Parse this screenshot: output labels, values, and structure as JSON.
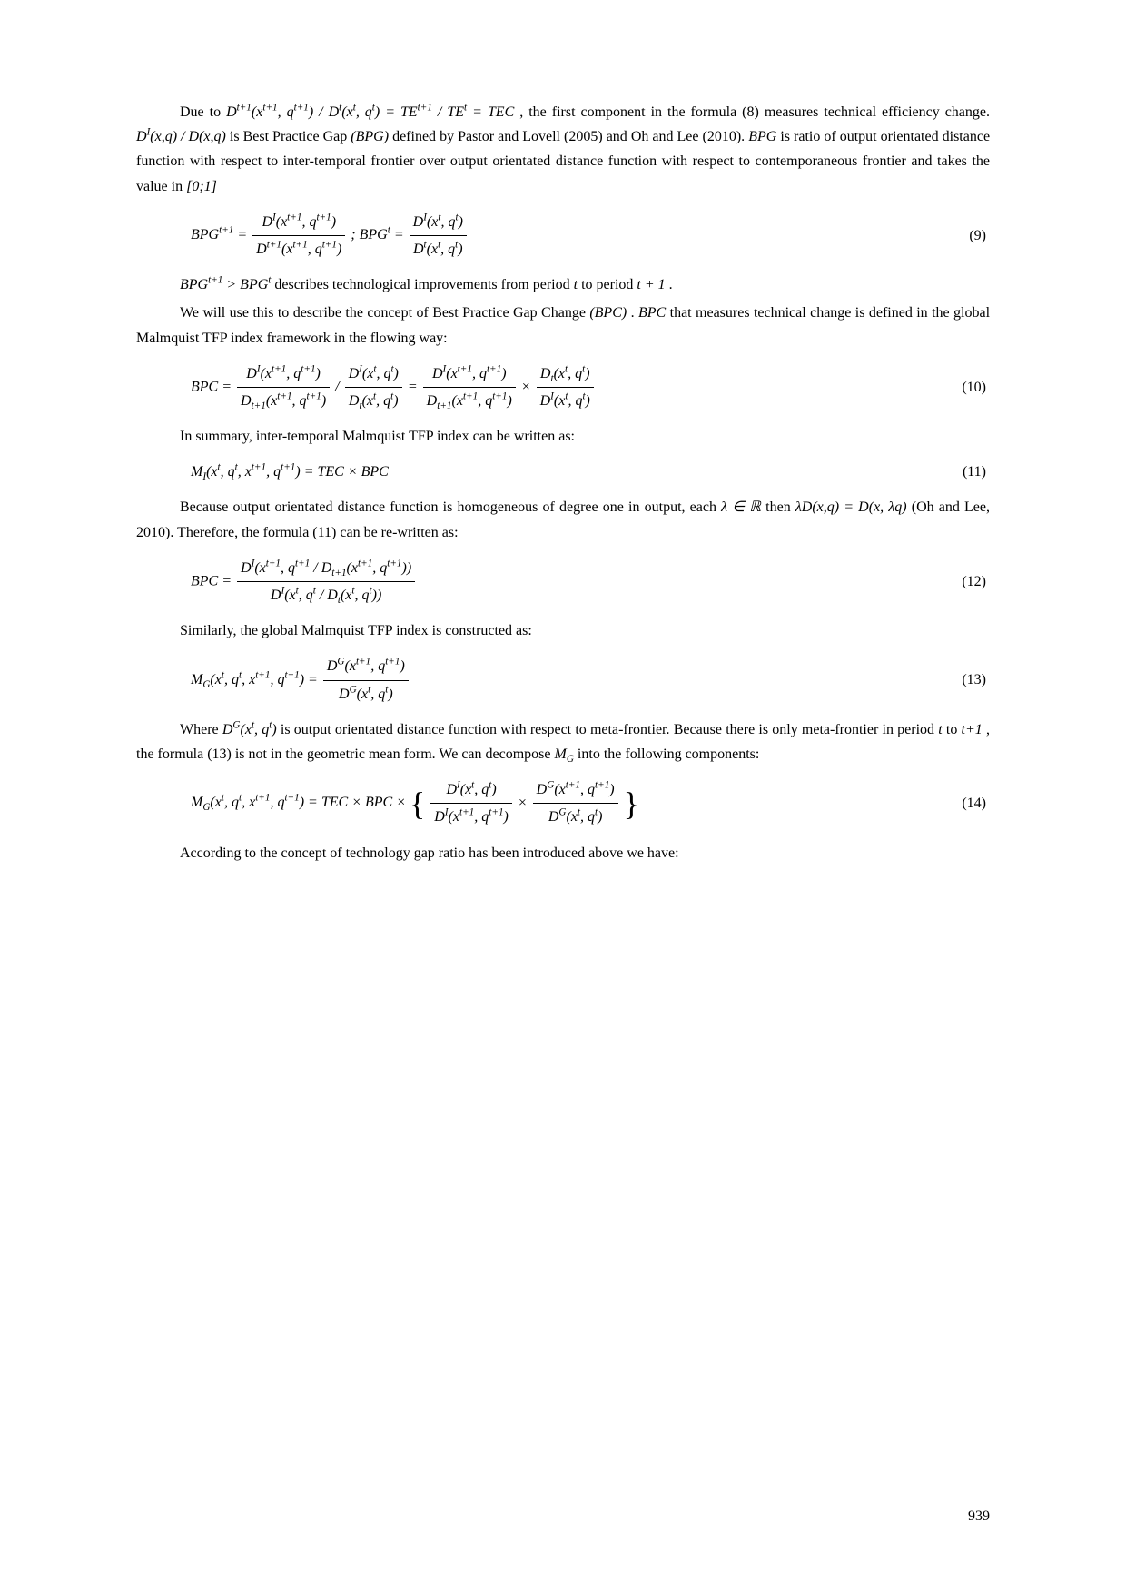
{
  "page_number": "939",
  "p1a": "Due to ",
  "m1": "D<sup>t+1</sup>(x<sup>t+1</sup>, q<sup>t+1</sup>) / D<sup>t</sup>(x<sup>t</sup>, q<sup>t</sup>) = TE<sup>t+1</sup> / TE<sup>t</sup> = TEC",
  "p1b": " , the first component in the formula (8) measures technical efficiency change. ",
  "m2": "D<sup>I</sup>(x,q) / D(x,q)",
  "p1c": " is Best Practice Gap ",
  "p1d": "(BPG)",
  "p1e": " defined by Pastor and Lovell (2005) and Oh and Lee (2010). ",
  "p1f": "BPG",
  "p1g": " is ratio of output orientated distance function with respect to inter-temporal frontier over output orientated distance function with respect to contemporaneous frontier and takes the value in ",
  "m3": "[0;1]",
  "eq9_lhs1": "BPG<sup>t+1</sup> = ",
  "eq9_num1": "D<sup>I</sup>(x<sup>t+1</sup>, q<sup>t+1</sup>)",
  "eq9_den1": "D<sup>t+1</sup>(x<sup>t+1</sup>, q<sup>t+1</sup>)",
  "eq9_mid": " ; BPG<sup>t</sup> = ",
  "eq9_num2": "D<sup>I</sup>(x<sup>t</sup>, q<sup>t</sup>)",
  "eq9_den2": "D<sup>t</sup>(x<sup>t</sup>, q<sup>t</sup>)",
  "eq9_n": "(9)",
  "m4": "BPG<sup>t+1</sup> > BPG<sup>t</sup>",
  "p2": " describes technological improvements from period ",
  "p2t": "t",
  "p2b": " to period ",
  "p2t1": "t + 1",
  "p2c": ".",
  "p3a": "We will use this to describe the concept of Best Practice Gap Change ",
  "p3b": "(BPC)",
  "p3c": ". ",
  "p3d": "BPC",
  "p3e": " that measures technical change  is defined in the global Malmquist TFP index framework in the flowing way:",
  "eq10_lhs": "BPC = ",
  "eq10_n1": "D<sup>I</sup>(x<sup>t+1</sup>, q<sup>t+1</sup>)",
  "eq10_d1": "D<sub>t+1</sub>(x<sup>t+1</sup>, q<sup>t+1</sup>)",
  "eq10_slash": " / ",
  "eq10_n2": "D<sup>I</sup>(x<sup>t</sup>, q<sup>t</sup>)",
  "eq10_d2": "D<sub>t</sub>(x<sup>t</sup>, q<sup>t</sup>)",
  "eq10_eq": " = ",
  "eq10_n3": "D<sup>I</sup>(x<sup>t+1</sup>, q<sup>t+1</sup>)",
  "eq10_d3": "D<sub>t+1</sub>(x<sup>t+1</sup>, q<sup>t+1</sup>)",
  "eq10_x": " × ",
  "eq10_n4": "D<sub>t</sub>(x<sup>t</sup>, q<sup>t</sup>)",
  "eq10_d4": "D<sup>I</sup>(x<sup>t</sup>, q<sup>t</sup>)",
  "eq10_n": "(10)",
  "p4": "In summary, inter-temporal Malmquist TFP index can be written as:",
  "eq11": "M<sub>I</sub>(x<sup>t</sup>, q<sup>t</sup>, x<sup>t+1</sup>, q<sup>t+1</sup>) = TEC × BPC",
  "eq11_n": "(11)",
  "p5a": "Because output orientated distance function is homogeneous of degree one in output,  each ",
  "m5a": "λ ∈ ℝ",
  "p5b": "  then ",
  "m5b": "λD(x,q) = D(x, λq)",
  "p5c": " (Oh and Lee, 2010). Therefore, the formula (11) can be re-written as:",
  "eq12_lhs": "BPC = ",
  "eq12_num": "D<sup>I</sup>(x<sup>t+1</sup>, q<sup>t+1</sup> / D<sub>t+1</sub>(x<sup>t+1</sup>, q<sup>t+1</sup>))",
  "eq12_den": "D<sup>I</sup>(x<sup>t</sup>, q<sup>t</sup> / D<sub>t</sub>(x<sup>t</sup>, q<sup>t</sup>))",
  "eq12_n": "(12)",
  "p6": "Similarly, the global Malmquist TFP index is constructed as:",
  "eq13_lhs": "M<sub>G</sub>(x<sup>t</sup>, q<sup>t</sup>, x<sup>t+1</sup>, q<sup>t+1</sup>) = ",
  "eq13_num": "D<sup>G</sup>(x<sup>t+1</sup>, q<sup>t+1</sup>)",
  "eq13_den": "D<sup>G</sup>(x<sup>t</sup>, q<sup>t</sup>)",
  "eq13_n": "(13)",
  "p7a": "Where ",
  "m7": "D<sup>G</sup>(x<sup>t</sup>, q<sup>t</sup>)",
  "p7b": " is output orientated distance function with respect to meta-frontier. Because there is only meta-frontier in period ",
  "p7t": "t",
  "p7c": " to ",
  "p7t1": "t+1",
  "p7d": ", the formula (13) is not in the geometric mean form. We can decompose ",
  "p7mg": "M<sub>G</sub>",
  "p7e": " into the following components:",
  "eq14_lhs": "M<sub>G</sub>(x<sup>t</sup>, q<sup>t</sup>, x<sup>t+1</sup>, q<sup>t+1</sup>) = TEC × BPC × ",
  "eq14_n1": "D<sup>I</sup>(x<sup>t</sup>, q<sup>t</sup>)",
  "eq14_d1": "D<sup>I</sup>(x<sup>t+1</sup>, q<sup>t+1</sup>)",
  "eq14_x": " × ",
  "eq14_n2": "D<sup>G</sup>(x<sup>t+1</sup>, q<sup>t+1</sup>)",
  "eq14_d2": "D<sup>G</sup>(x<sup>t</sup>, q<sup>t</sup>)",
  "eq14_n": "(14)",
  "p8": "According to the concept of technology gap ratio has been introduced above we have:"
}
